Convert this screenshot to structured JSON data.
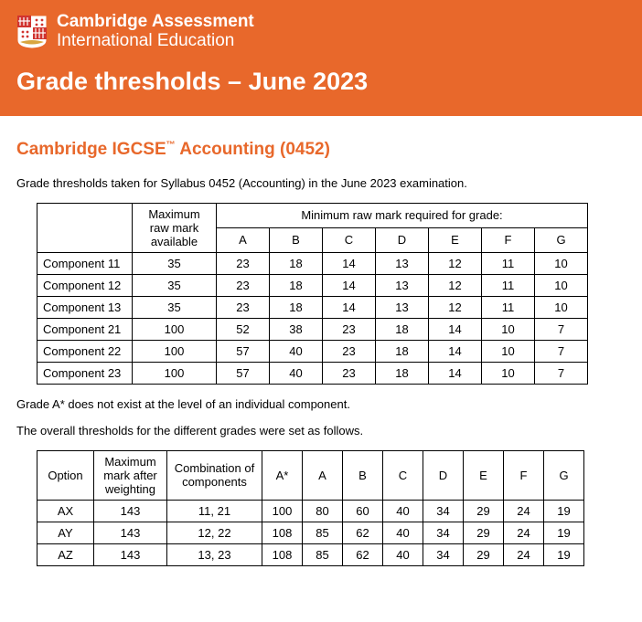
{
  "colors": {
    "accent": "#e8682b",
    "text": "#000000",
    "bg": "#ffffff",
    "header_text": "#ffffff"
  },
  "header": {
    "logo_line1": "Cambridge Assessment",
    "logo_line2": "International Education",
    "doc_title": "Grade thresholds – June 2023"
  },
  "subject": {
    "prefix": "Cambridge IGCSE",
    "tm": "™",
    "name": " Accounting (0452)"
  },
  "intro": "Grade thresholds taken for Syllabus 0452 (Accounting) in the June 2023 examination.",
  "table1": {
    "spanner": "Minimum raw mark required for grade:",
    "max_header": "Maximum raw mark available",
    "grades": [
      "A",
      "B",
      "C",
      "D",
      "E",
      "F",
      "G"
    ],
    "rows": [
      {
        "label": "Component 11",
        "max": 35,
        "vals": [
          23,
          18,
          14,
          13,
          12,
          11,
          10
        ]
      },
      {
        "label": "Component 12",
        "max": 35,
        "vals": [
          23,
          18,
          14,
          13,
          12,
          11,
          10
        ]
      },
      {
        "label": "Component 13",
        "max": 35,
        "vals": [
          23,
          18,
          14,
          13,
          12,
          11,
          10
        ]
      },
      {
        "label": "Component 21",
        "max": 100,
        "vals": [
          52,
          38,
          23,
          18,
          14,
          10,
          7
        ]
      },
      {
        "label": "Component 22",
        "max": 100,
        "vals": [
          57,
          40,
          23,
          18,
          14,
          10,
          7
        ]
      },
      {
        "label": "Component 23",
        "max": 100,
        "vals": [
          57,
          40,
          23,
          18,
          14,
          10,
          7
        ]
      }
    ]
  },
  "note_astar": "Grade A* does not exist at the level of an individual component.",
  "note_overall": "The overall thresholds for the different grades were set as follows.",
  "table2": {
    "headers": {
      "option": "Option",
      "max": "Maximum mark after weighting",
      "comb": "Combination of components"
    },
    "grades": [
      "A*",
      "A",
      "B",
      "C",
      "D",
      "E",
      "F",
      "G"
    ],
    "rows": [
      {
        "option": "AX",
        "max": 143,
        "comb": "11, 21",
        "vals": [
          100,
          80,
          60,
          40,
          34,
          29,
          24,
          19
        ]
      },
      {
        "option": "AY",
        "max": 143,
        "comb": "12, 22",
        "vals": [
          108,
          85,
          62,
          40,
          34,
          29,
          24,
          19
        ]
      },
      {
        "option": "AZ",
        "max": 143,
        "comb": "13, 23",
        "vals": [
          108,
          85,
          62,
          40,
          34,
          29,
          24,
          19
        ]
      }
    ]
  }
}
